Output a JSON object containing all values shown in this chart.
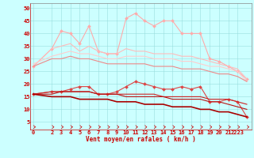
{
  "x": [
    0,
    2,
    3,
    4,
    5,
    6,
    7,
    8,
    9,
    10,
    11,
    12,
    13,
    14,
    15,
    16,
    17,
    18,
    19,
    20,
    21,
    22,
    23
  ],
  "series": [
    {
      "color": "#ffaaaa",
      "linewidth": 0.8,
      "marker": "D",
      "markersize": 2.0,
      "values": [
        27,
        34,
        41,
        40,
        36,
        43,
        33,
        32,
        32,
        46,
        48,
        45,
        43,
        45,
        45,
        40,
        40,
        40,
        30,
        29,
        27,
        25,
        22
      ]
    },
    {
      "color": "#ffbbbb",
      "linewidth": 0.8,
      "marker": null,
      "values": [
        27,
        34,
        35,
        36,
        33,
        35,
        33,
        32,
        32,
        34,
        33,
        33,
        32,
        32,
        32,
        31,
        31,
        30,
        29,
        28,
        27,
        26,
        22
      ]
    },
    {
      "color": "#ffcccc",
      "linewidth": 0.8,
      "marker": null,
      "values": [
        28,
        31,
        32,
        33,
        32,
        32,
        31,
        30,
        30,
        31,
        31,
        31,
        30,
        30,
        30,
        29,
        29,
        28,
        27,
        27,
        26,
        25,
        21
      ]
    },
    {
      "color": "#ee8888",
      "linewidth": 0.8,
      "marker": null,
      "values": [
        27,
        30,
        30,
        31,
        30,
        30,
        29,
        28,
        28,
        28,
        28,
        28,
        27,
        27,
        27,
        26,
        26,
        26,
        25,
        24,
        24,
        23,
        21
      ]
    },
    {
      "color": "#dd4444",
      "linewidth": 0.8,
      "marker": "D",
      "markersize": 2.0,
      "values": [
        16,
        17,
        17,
        18,
        19,
        19,
        16,
        16,
        17,
        19,
        21,
        20,
        19,
        18,
        18,
        19,
        18,
        19,
        13,
        13,
        14,
        13,
        7
      ]
    },
    {
      "color": "#cc2222",
      "linewidth": 0.8,
      "marker": null,
      "values": [
        16,
        17,
        17,
        17,
        17,
        17,
        16,
        16,
        16,
        16,
        16,
        16,
        16,
        15,
        15,
        15,
        15,
        15,
        14,
        14,
        14,
        13,
        12
      ]
    },
    {
      "color": "#bb1111",
      "linewidth": 0.8,
      "marker": null,
      "values": [
        16,
        16,
        17,
        17,
        17,
        17,
        16,
        16,
        16,
        15,
        15,
        15,
        15,
        15,
        14,
        14,
        14,
        14,
        13,
        13,
        12,
        11,
        10
      ]
    },
    {
      "color": "#aa0000",
      "linewidth": 1.2,
      "marker": null,
      "values": [
        16,
        15,
        15,
        15,
        14,
        14,
        14,
        14,
        13,
        13,
        13,
        12,
        12,
        12,
        11,
        11,
        11,
        10,
        10,
        9,
        9,
        8,
        7
      ]
    }
  ],
  "arrow_color": "#cc0000",
  "xlabel": "Vent moyen/en rafales ( km/h )",
  "xlabel_color": "#cc0000",
  "xlabel_fontsize": 5.5,
  "xtick_labels": [
    "0",
    "2",
    "3",
    "4",
    "5",
    "6",
    "7",
    "8",
    "9",
    "10",
    "11",
    "12",
    "13",
    "14",
    "15",
    "16",
    "17",
    "18",
    "19",
    "20",
    "21",
    "2223"
  ],
  "xtick_positions": [
    0,
    2,
    3,
    4,
    5,
    6,
    7,
    8,
    9,
    10,
    11,
    12,
    13,
    14,
    15,
    16,
    17,
    18,
    19,
    20,
    21,
    22
  ],
  "yticks": [
    5,
    10,
    15,
    20,
    25,
    30,
    35,
    40,
    45,
    50
  ],
  "xlim": [
    -0.3,
    23.5
  ],
  "ylim": [
    2,
    52
  ],
  "tick_color": "#cc0000",
  "tick_fontsize": 5.0,
  "background_color": "#ccffff",
  "grid_color": "#99dddd",
  "figsize": [
    3.2,
    2.0
  ],
  "dpi": 100
}
